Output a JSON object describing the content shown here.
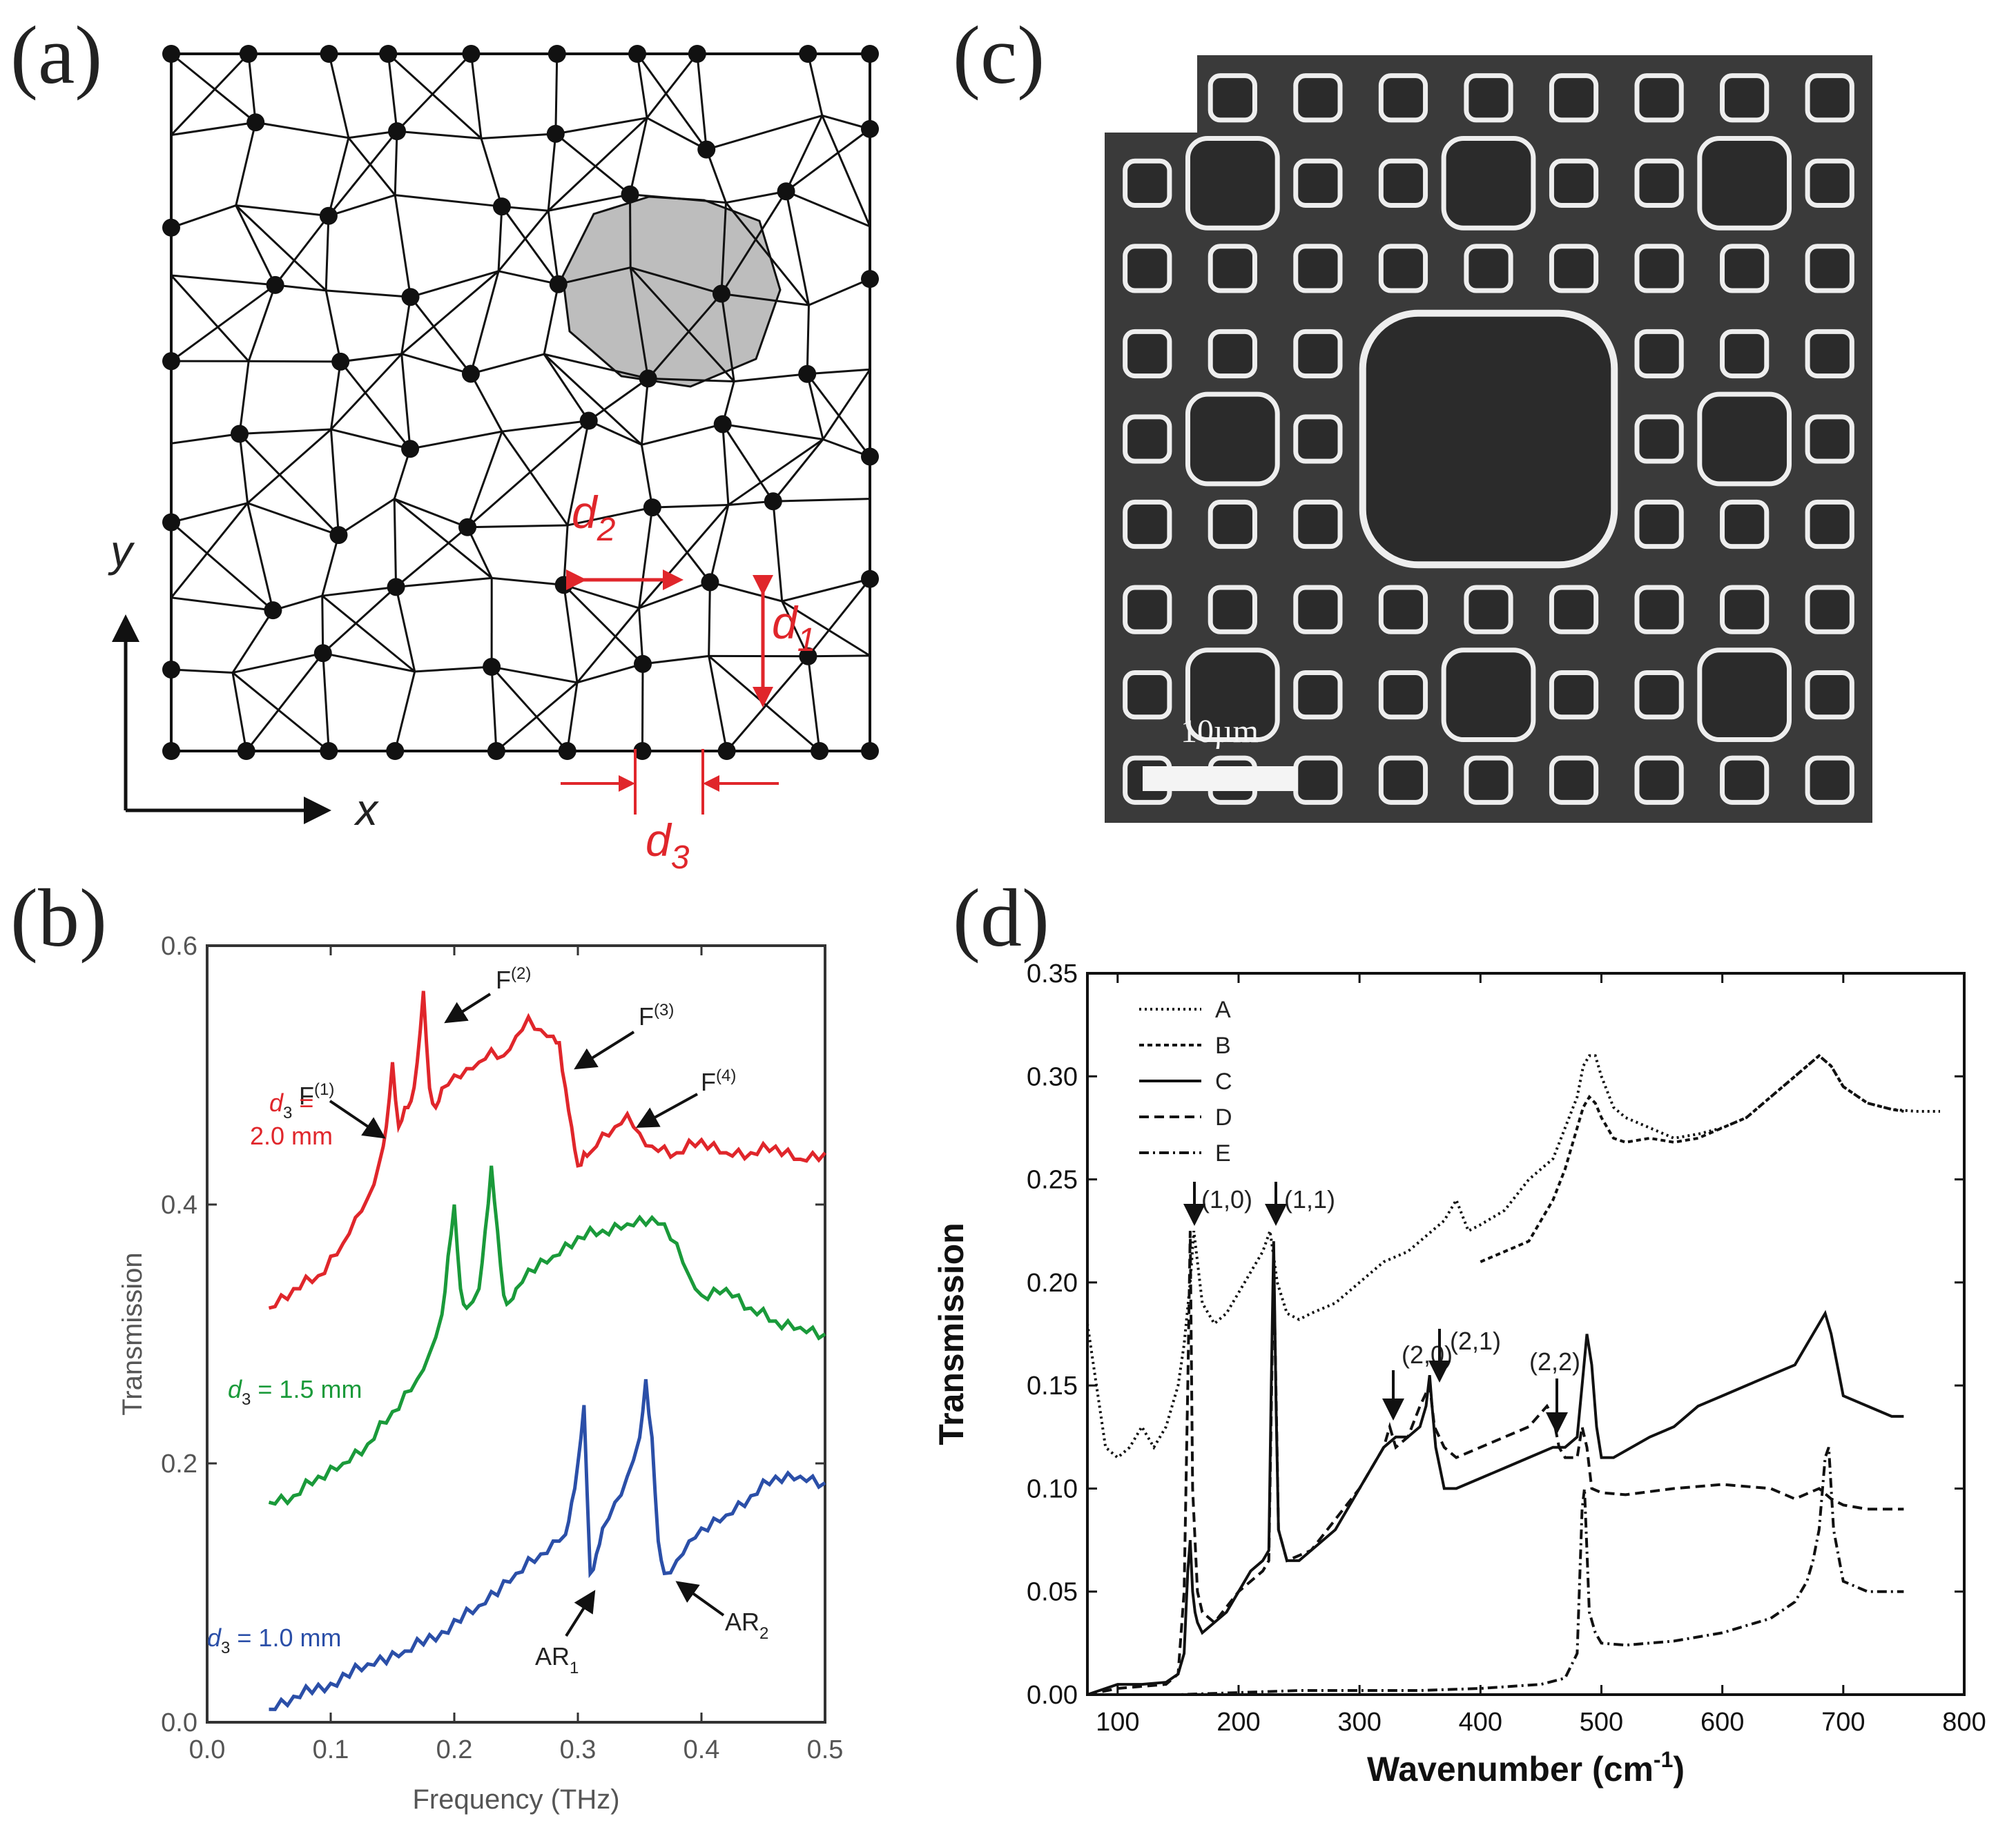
{
  "panels": {
    "a": {
      "letter": "(a)",
      "axis_x": "x",
      "axis_y": "y",
      "labels": {
        "d1": "d",
        "d1_sub": "1",
        "d2": "d",
        "d2_sub": "2",
        "d3": "d",
        "d3_sub": "3"
      }
    },
    "b": {
      "letter": "(b)",
      "annotations": {
        "F1": "F",
        "F1_sup": "(1)",
        "F2": "F",
        "F2_sup": "(2)",
        "F3": "F",
        "F3_sup": "(3)",
        "F4": "F",
        "F4_sup": "(4)",
        "AR1": "AR",
        "AR1_sub": "1",
        "AR2": "AR",
        "AR2_sub": "2"
      },
      "series_labels": {
        "red_line1_var": "d",
        "red_line1_sub": "3",
        "red_line1_rest": " =",
        "red_line2": "2.0 mm",
        "green_var": "d",
        "green_sub": "3",
        "green_rest": " = 1.5 mm",
        "blue_var": "d",
        "blue_sub": "3",
        "blue_rest": " = 1.0 mm"
      }
    },
    "c": {
      "letter": "(c)",
      "scale_bar": "10µm"
    },
    "d": {
      "letter": "(d)",
      "annotations": {
        "p10": "(1,0)",
        "p11": "(1,1)",
        "p20": "(2,0)",
        "p21": "(2,1)",
        "p22": "(2,2)"
      }
    }
  },
  "chart_data": [
    {
      "id": "b",
      "type": "line",
      "title": "",
      "xlabel": "Frequency (THz)",
      "ylabel": "Transmission",
      "xlim": [
        0.0,
        0.5
      ],
      "ylim": [
        0.0,
        0.6
      ],
      "xticks": [
        "0.0",
        "0.1",
        "0.2",
        "0.3",
        "0.4",
        "0.5"
      ],
      "yticks": [
        "0.0",
        "0.2",
        "0.4",
        "0.6"
      ],
      "series": [
        {
          "name": "d3 = 2.0 mm",
          "color": "#e0262b",
          "x": [
            0.05,
            0.07,
            0.09,
            0.11,
            0.12,
            0.13,
            0.14,
            0.145,
            0.15,
            0.155,
            0.16,
            0.165,
            0.17,
            0.175,
            0.18,
            0.185,
            0.19,
            0.2,
            0.21,
            0.22,
            0.23,
            0.24,
            0.25,
            0.26,
            0.27,
            0.28,
            0.285,
            0.29,
            0.295,
            0.3,
            0.305,
            0.31,
            0.32,
            0.33,
            0.34,
            0.35,
            0.36,
            0.38,
            0.4,
            0.42,
            0.44,
            0.46,
            0.48,
            0.5
          ],
          "values": [
            0.32,
            0.335,
            0.345,
            0.37,
            0.39,
            0.405,
            0.435,
            0.46,
            0.51,
            0.46,
            0.475,
            0.48,
            0.51,
            0.565,
            0.49,
            0.475,
            0.49,
            0.5,
            0.505,
            0.51,
            0.52,
            0.515,
            0.53,
            0.545,
            0.535,
            0.53,
            0.525,
            0.49,
            0.46,
            0.43,
            0.44,
            0.44,
            0.455,
            0.46,
            0.47,
            0.455,
            0.445,
            0.44,
            0.45,
            0.44,
            0.44,
            0.445,
            0.435,
            0.44
          ]
        },
        {
          "name": "d3 = 1.5 mm",
          "color": "#1a9a3a",
          "x": [
            0.05,
            0.07,
            0.09,
            0.11,
            0.13,
            0.15,
            0.17,
            0.18,
            0.19,
            0.195,
            0.2,
            0.205,
            0.21,
            0.22,
            0.225,
            0.23,
            0.235,
            0.24,
            0.245,
            0.25,
            0.26,
            0.28,
            0.3,
            0.32,
            0.34,
            0.36,
            0.37,
            0.38,
            0.39,
            0.4,
            0.42,
            0.44,
            0.46,
            0.48,
            0.5
          ],
          "values": [
            0.17,
            0.175,
            0.19,
            0.2,
            0.215,
            0.24,
            0.265,
            0.285,
            0.315,
            0.36,
            0.4,
            0.335,
            0.32,
            0.335,
            0.38,
            0.43,
            0.38,
            0.33,
            0.325,
            0.335,
            0.35,
            0.36,
            0.375,
            0.38,
            0.385,
            0.39,
            0.385,
            0.37,
            0.345,
            0.33,
            0.335,
            0.32,
            0.31,
            0.305,
            0.3
          ]
        },
        {
          "name": "d3 = 1.0 mm",
          "color": "#2b4fa8",
          "x": [
            0.05,
            0.07,
            0.1,
            0.13,
            0.16,
            0.19,
            0.22,
            0.25,
            0.27,
            0.28,
            0.29,
            0.295,
            0.3,
            0.305,
            0.31,
            0.315,
            0.32,
            0.33,
            0.34,
            0.35,
            0.355,
            0.36,
            0.365,
            0.37,
            0.38,
            0.39,
            0.4,
            0.42,
            0.44,
            0.46,
            0.48,
            0.5
          ],
          "values": [
            0.01,
            0.02,
            0.03,
            0.045,
            0.055,
            0.07,
            0.09,
            0.115,
            0.13,
            0.14,
            0.145,
            0.17,
            0.2,
            0.245,
            0.115,
            0.13,
            0.15,
            0.17,
            0.19,
            0.22,
            0.265,
            0.22,
            0.14,
            0.115,
            0.125,
            0.14,
            0.15,
            0.16,
            0.175,
            0.19,
            0.19,
            0.185
          ]
        }
      ]
    },
    {
      "id": "d",
      "type": "line",
      "title": "",
      "xlabel": "Wavenumber (cm",
      "xlabel_sup": "-1",
      "xlabel_end": ")",
      "ylabel": "Transmission",
      "xlim": [
        75,
        800
      ],
      "ylim": [
        0.0,
        0.35
      ],
      "xticks": [
        "100",
        "200",
        "300",
        "400",
        "500",
        "600",
        "700",
        "800"
      ],
      "yticks": [
        "0.00",
        "0.05",
        "0.10",
        "0.15",
        "0.20",
        "0.25",
        "0.30",
        "0.35"
      ],
      "legend": [
        "A",
        "B",
        "C",
        "D",
        "E"
      ],
      "legend_position": "top-left",
      "series": [
        {
          "name": "A",
          "dash": "3,5",
          "x": [
            75,
            90,
            100,
            110,
            120,
            130,
            140,
            150,
            155,
            160,
            163,
            166,
            170,
            180,
            190,
            200,
            210,
            220,
            226,
            232,
            240,
            250,
            260,
            280,
            300,
            320,
            340,
            360,
            370,
            380,
            390,
            400,
            420,
            440,
            460,
            470,
            480,
            485,
            490,
            495,
            500,
            510,
            520,
            540,
            560,
            580,
            600,
            620,
            640,
            660,
            680,
            690,
            700,
            720,
            740,
            760,
            780
          ],
          "values": [
            0.18,
            0.12,
            0.115,
            0.12,
            0.13,
            0.12,
            0.13,
            0.15,
            0.17,
            0.2,
            0.225,
            0.21,
            0.19,
            0.18,
            0.185,
            0.195,
            0.205,
            0.215,
            0.225,
            0.2,
            0.185,
            0.182,
            0.185,
            0.19,
            0.2,
            0.21,
            0.215,
            0.225,
            0.23,
            0.24,
            0.225,
            0.228,
            0.235,
            0.25,
            0.26,
            0.275,
            0.29,
            0.305,
            0.31,
            0.31,
            0.3,
            0.285,
            0.28,
            0.275,
            0.27,
            0.272,
            0.275,
            0.28,
            0.29,
            0.3,
            0.31,
            0.305,
            0.295,
            0.287,
            0.284,
            0.283,
            0.283
          ]
        },
        {
          "name": "B",
          "dash": "7,5",
          "x": [
            400,
            420,
            440,
            460,
            470,
            480,
            485,
            490,
            495,
            500,
            510,
            520,
            540,
            560,
            580,
            600,
            620,
            640,
            660,
            680,
            690,
            700,
            720,
            740,
            750
          ],
          "values": [
            0.21,
            0.215,
            0.22,
            0.24,
            0.255,
            0.275,
            0.285,
            0.29,
            0.287,
            0.28,
            0.27,
            0.268,
            0.27,
            0.268,
            0.27,
            0.275,
            0.28,
            0.29,
            0.3,
            0.31,
            0.305,
            0.295,
            0.287,
            0.284,
            0.283
          ]
        },
        {
          "name": "C",
          "dash": "",
          "x": [
            75,
            100,
            120,
            140,
            150,
            155,
            158,
            160,
            162,
            164,
            166,
            170,
            180,
            190,
            200,
            210,
            220,
            225,
            227,
            229,
            231,
            233,
            240,
            250,
            260,
            280,
            300,
            320,
            330,
            340,
            350,
            355,
            358,
            360,
            363,
            370,
            380,
            400,
            420,
            440,
            460,
            470,
            480,
            484,
            488,
            492,
            496,
            500,
            510,
            540,
            560,
            580,
            600,
            620,
            640,
            660,
            670,
            680,
            685,
            690,
            695,
            700,
            720,
            740,
            750
          ],
          "values": [
            0.0,
            0.005,
            0.005,
            0.006,
            0.01,
            0.02,
            0.06,
            0.075,
            0.05,
            0.04,
            0.035,
            0.03,
            0.035,
            0.04,
            0.05,
            0.06,
            0.065,
            0.07,
            0.15,
            0.22,
            0.14,
            0.08,
            0.065,
            0.065,
            0.07,
            0.08,
            0.1,
            0.12,
            0.125,
            0.125,
            0.13,
            0.14,
            0.155,
            0.14,
            0.12,
            0.1,
            0.1,
            0.105,
            0.11,
            0.115,
            0.12,
            0.12,
            0.125,
            0.15,
            0.175,
            0.16,
            0.13,
            0.115,
            0.115,
            0.125,
            0.13,
            0.14,
            0.145,
            0.15,
            0.155,
            0.16,
            0.17,
            0.18,
            0.185,
            0.175,
            0.16,
            0.145,
            0.14,
            0.135,
            0.135
          ]
        },
        {
          "name": "D",
          "dash": "14,8",
          "x": [
            75,
            100,
            140,
            150,
            155,
            158,
            160,
            162,
            166,
            170,
            180,
            200,
            220,
            225,
            229,
            233,
            240,
            260,
            280,
            300,
            320,
            325,
            330,
            340,
            350,
            358,
            362,
            370,
            380,
            400,
            420,
            440,
            455,
            460,
            465,
            470,
            480,
            484,
            488,
            492,
            500,
            520,
            560,
            600,
            640,
            660,
            680,
            690,
            700,
            720,
            740,
            750
          ],
          "values": [
            0.0,
            0.003,
            0.005,
            0.01,
            0.05,
            0.15,
            0.225,
            0.1,
            0.05,
            0.04,
            0.035,
            0.05,
            0.06,
            0.065,
            0.21,
            0.08,
            0.065,
            0.07,
            0.085,
            0.1,
            0.12,
            0.13,
            0.12,
            0.125,
            0.14,
            0.15,
            0.13,
            0.12,
            0.115,
            0.12,
            0.125,
            0.13,
            0.14,
            0.135,
            0.12,
            0.115,
            0.115,
            0.13,
            0.12,
            0.1,
            0.098,
            0.097,
            0.1,
            0.102,
            0.1,
            0.095,
            0.1,
            0.095,
            0.092,
            0.09,
            0.09,
            0.09
          ]
        },
        {
          "name": "E",
          "dash": "14,6,3,6",
          "x": [
            75,
            150,
            200,
            250,
            300,
            350,
            400,
            450,
            470,
            480,
            484,
            486,
            488,
            490,
            495,
            500,
            520,
            560,
            600,
            640,
            660,
            670,
            675,
            680,
            685,
            688,
            692,
            700,
            720,
            740,
            750
          ],
          "values": [
            0.0,
            0.0,
            0.001,
            0.002,
            0.002,
            0.002,
            0.003,
            0.005,
            0.008,
            0.02,
            0.09,
            0.1,
            0.07,
            0.04,
            0.03,
            0.025,
            0.024,
            0.026,
            0.03,
            0.037,
            0.045,
            0.055,
            0.065,
            0.08,
            0.115,
            0.12,
            0.08,
            0.055,
            0.05,
            0.05,
            0.05
          ]
        }
      ]
    }
  ]
}
